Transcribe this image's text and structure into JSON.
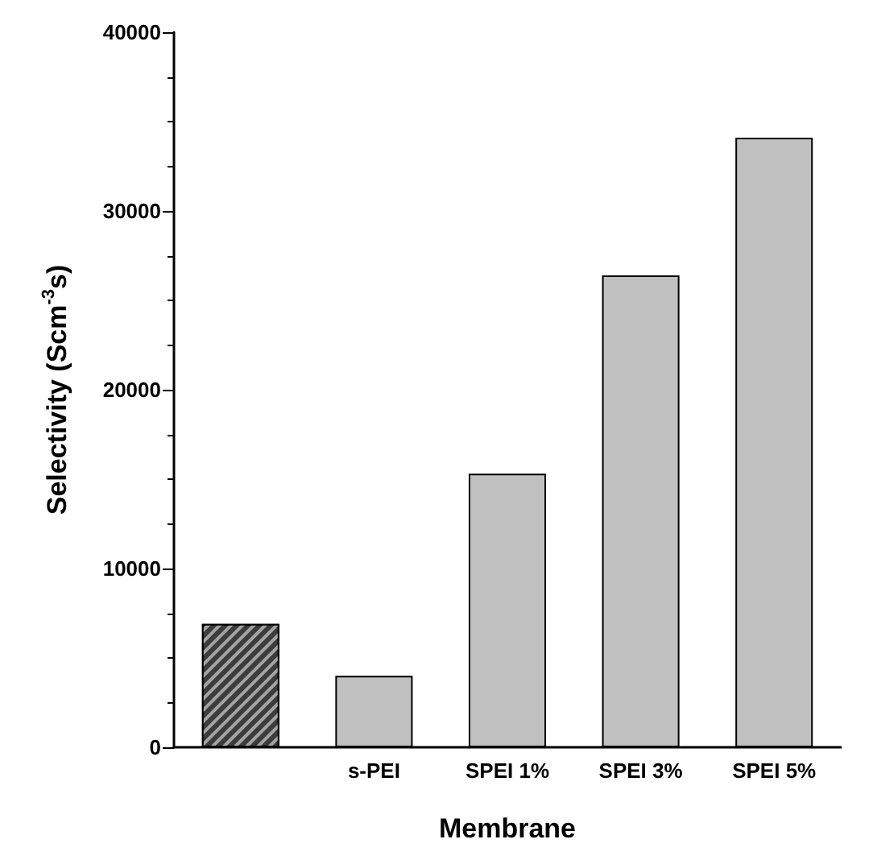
{
  "chart_data": {
    "type": "bar",
    "categories": [
      null,
      "s-PEI",
      "SPEI 1%",
      "SPEI 3%",
      "SPEI 5%"
    ],
    "values": [
      6900,
      4000,
      15300,
      26400,
      34100
    ],
    "colors": [
      "#3c3c3c",
      "#c0c0c0",
      "#c0c0c0",
      "#c0c0c0",
      "#c0c0c0"
    ],
    "xlabel": "Membrane",
    "ylabel": "Selectivity (Scm$^{-3}$s)",
    "ylim": [
      0,
      40000
    ],
    "yticks": [
      0,
      10000,
      20000,
      30000,
      40000
    ],
    "data_labels": false
  }
}
